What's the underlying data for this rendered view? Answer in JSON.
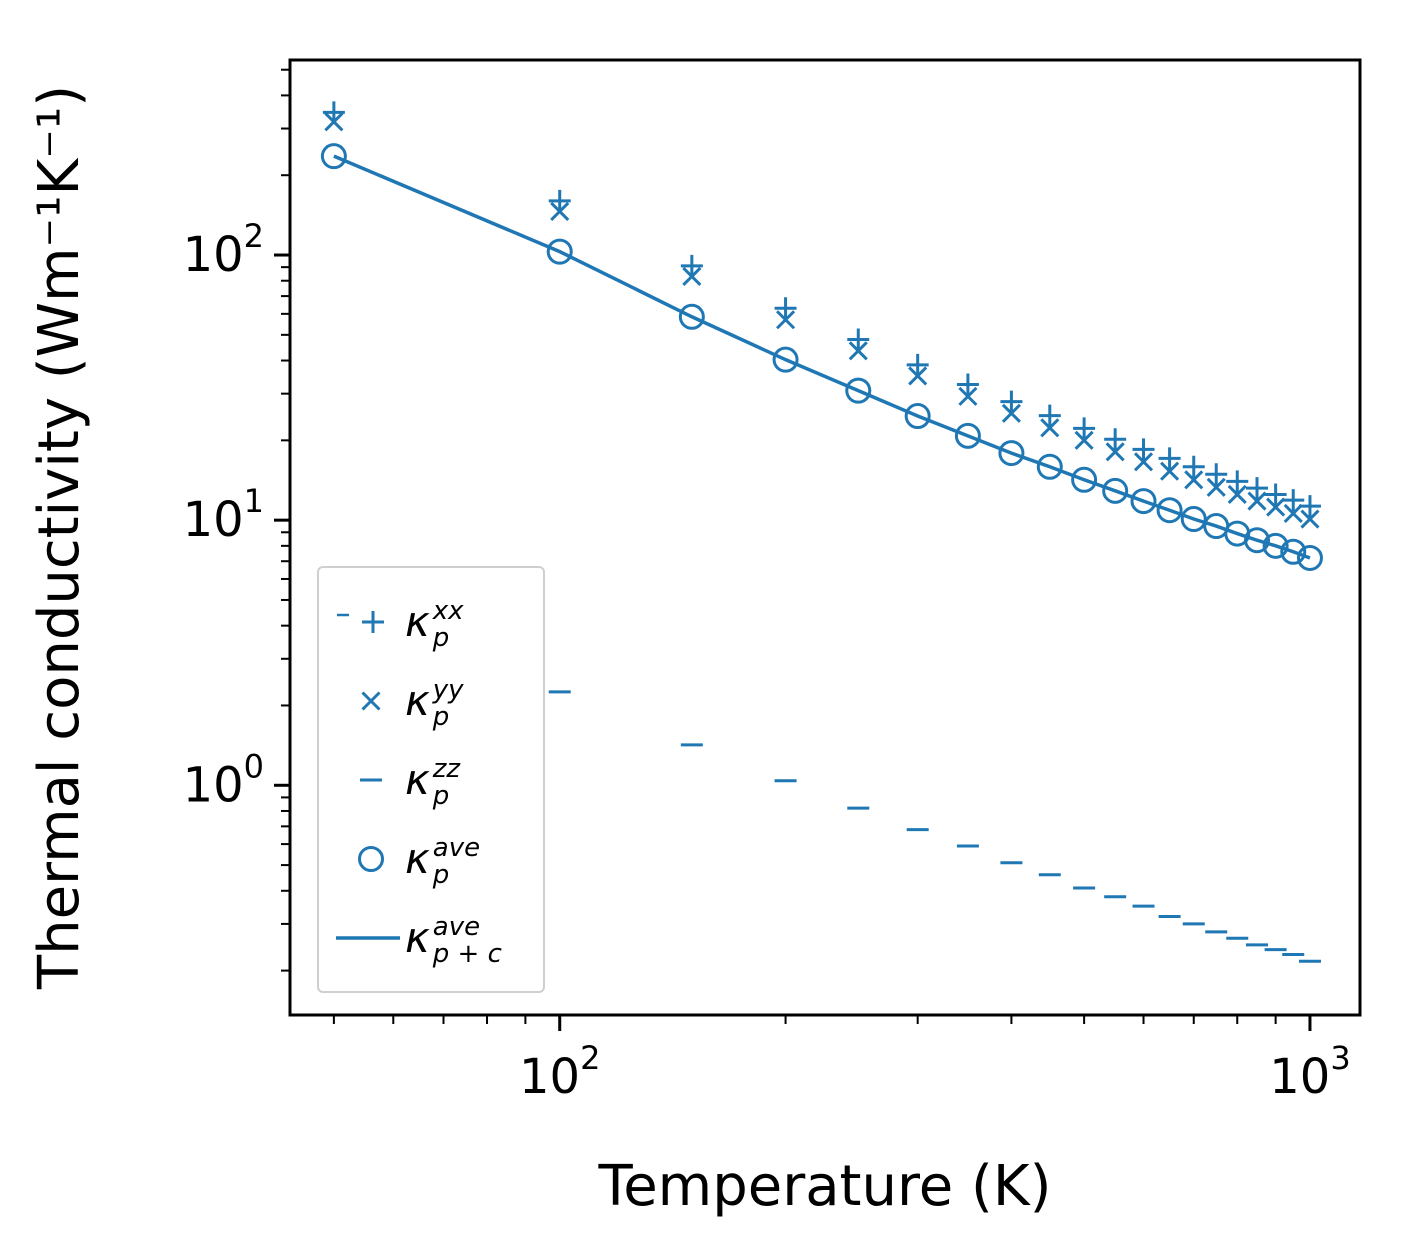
{
  "chart_data": {
    "type": "scatter",
    "title": "",
    "xlabel": "Temperature (K)",
    "ylabel": "Thermal conductivity (Wm⁻¹K⁻¹)",
    "xscale": "log",
    "yscale": "log",
    "xlim": [
      43.7,
      1166
    ],
    "ylim": [
      0.136,
      544
    ],
    "grid": false,
    "legend_position": "lower left",
    "color": "#1f77b4",
    "axis_color": "#000000",
    "legend_border_color": "#cfcfcf",
    "x_major_ticks": [
      {
        "v": 100,
        "exp": "2"
      },
      {
        "v": 1000,
        "exp": "3"
      }
    ],
    "y_major_ticks": [
      {
        "v": 1,
        "exp": "0"
      },
      {
        "v": 10,
        "exp": "1"
      },
      {
        "v": 100,
        "exp": "2"
      }
    ],
    "x": [
      50,
      100,
      150,
      200,
      250,
      300,
      350,
      400,
      450,
      500,
      550,
      600,
      650,
      700,
      750,
      800,
      850,
      900,
      950,
      1000
    ],
    "series": [
      {
        "name": "kappa_p_xx",
        "marker": "plus",
        "values": [
          345,
          160,
          91,
          63,
          48,
          38.5,
          32.5,
          28,
          24.8,
          22.2,
          20.2,
          18.5,
          17.1,
          15.9,
          14.9,
          14,
          13.2,
          12.5,
          11.9,
          11.3
        ]
      },
      {
        "name": "kappa_p_yy",
        "marker": "x",
        "values": [
          318,
          146,
          83,
          57,
          43.5,
          35,
          29.3,
          25.3,
          22.3,
          20,
          18.1,
          16.6,
          15.3,
          14.2,
          13.3,
          12.5,
          11.8,
          11.2,
          10.6,
          10.1
        ]
      },
      {
        "name": "kappa_p_zz",
        "marker": "hline",
        "values": [
          4.6,
          2.25,
          1.42,
          1.04,
          0.82,
          0.68,
          0.59,
          0.51,
          0.46,
          0.41,
          0.38,
          0.35,
          0.32,
          0.3,
          0.28,
          0.265,
          0.25,
          0.24,
          0.23,
          0.217
        ]
      },
      {
        "name": "kappa_p_ave",
        "marker": "circle",
        "values": [
          236,
          103,
          58.5,
          40.3,
          30.8,
          24.7,
          20.8,
          17.9,
          15.9,
          14.2,
          12.9,
          11.8,
          10.9,
          10.1,
          9.5,
          8.9,
          8.4,
          8.0,
          7.6,
          7.2
        ]
      },
      {
        "name": "kappa_p_plus_c_ave",
        "marker": "line",
        "values": [
          236,
          103,
          58.5,
          40.3,
          30.8,
          24.7,
          20.8,
          17.9,
          15.9,
          14.2,
          12.9,
          11.8,
          10.9,
          10.1,
          9.5,
          8.9,
          8.4,
          8.0,
          7.6,
          7.2
        ]
      }
    ],
    "legend": [
      {
        "marker": "plus",
        "base": "κ",
        "sub": "p",
        "sup": "xx"
      },
      {
        "marker": "x",
        "base": "κ",
        "sub": "p",
        "sup": "yy"
      },
      {
        "marker": "hline",
        "base": "κ",
        "sub": "p",
        "sup": "zz"
      },
      {
        "marker": "circle",
        "base": "κ",
        "sub": "p",
        "sup": "ave"
      },
      {
        "marker": "line",
        "base": "κ",
        "sub": "p + c",
        "sup": "ave"
      }
    ]
  }
}
